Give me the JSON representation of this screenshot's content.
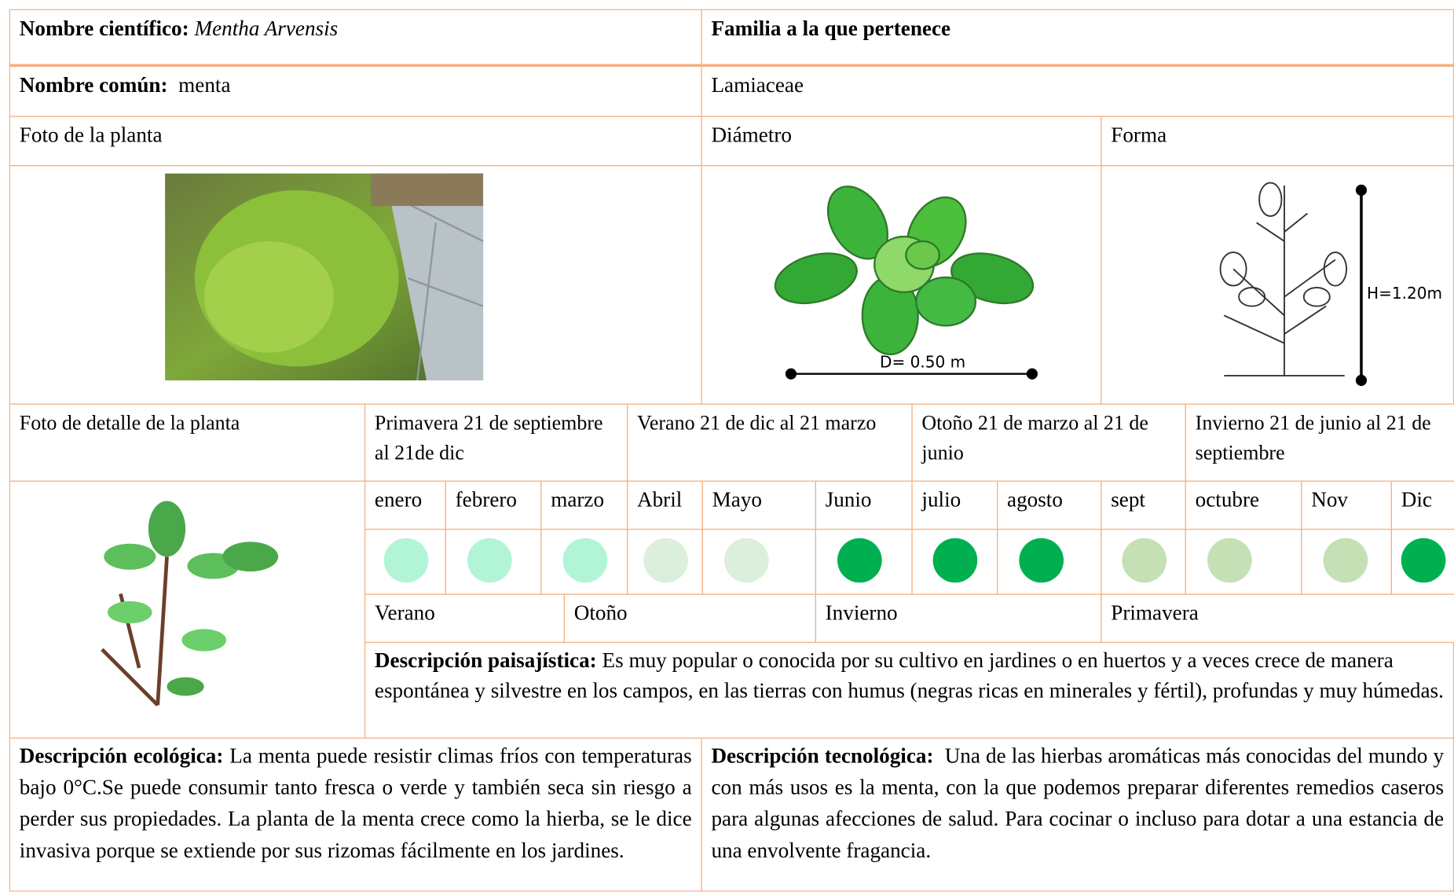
{
  "header": {
    "scientific_name_label": "Nombre científico:",
    "scientific_name": "Mentha Arvensis",
    "family_label": "Familia a la que pertenece",
    "common_name_label": "Nombre común:",
    "common_name": "menta",
    "family": "Lamiaceae"
  },
  "photo_label": "Foto de la planta",
  "diameter_label": "Diámetro",
  "shape_label": "Forma",
  "diameter_annotation": "D= 0.50 m",
  "height_annotation": "H=1.20m",
  "detail_photo_label": "Foto de detalle de la planta",
  "seasons": [
    "Primavera 21 de septiembre al 21de dic",
    "Verano 21 de dic al 21 marzo",
    "Otoño 21 de marzo al 21 de junio",
    "Invierno 21 de junio al 21 de septiembre"
  ],
  "months": [
    {
      "label": "enero",
      "color": "#b2f5d6"
    },
    {
      "label": "febrero",
      "color": "#b2f5d6"
    },
    {
      "label": "marzo",
      "color": "#b2f5d6"
    },
    {
      "label": "Abril",
      "color": "#dcefdc"
    },
    {
      "label": "Mayo",
      "color": "#dcefdc"
    },
    {
      "label": "Junio",
      "color": "#00b050"
    },
    {
      "label": "julio",
      "color": "#00b050"
    },
    {
      "label": "agosto",
      "color": "#00b050"
    },
    {
      "label": "sept",
      "color": "#c5e0b4"
    },
    {
      "label": "octubre",
      "color": "#c5e0b4"
    },
    {
      "label": "Nov",
      "color": "#c5e0b4"
    },
    {
      "label": "Dic",
      "color": "#00b050"
    }
  ],
  "bottom_seasons": [
    "Verano",
    "Otoño",
    "Invierno",
    "Primavera"
  ],
  "landscape": {
    "label": "Descripción paisajística:",
    "text": "Es muy popular o conocida por su cultivo en jardines o en huertos y a veces crece de manera espontánea y silvestre en los campos, en las tierras con humus (negras ricas en minerales y fértil), profundas y muy húmedas."
  },
  "ecological": {
    "label": "Descripción ecológica:",
    "text": "La menta puede resistir climas fríos con temperaturas bajo 0°C.Se puede consumir tanto fresca o verde y también seca sin riesgo a perder sus propiedades. La planta de la menta crece como la hierba, se le dice invasiva porque se extiende por sus rizomas fácilmente en los jardines."
  },
  "technological": {
    "label": "Descripción tecnológica:",
    "text": "Una de las hierbas aromáticas más conocidas del mundo y con más usos es la menta, con la que podemos preparar diferentes remedios caseros para algunas afecciones de salud. Para cocinar o incluso para dotar a una estancia de una envolvente fragancia."
  }
}
